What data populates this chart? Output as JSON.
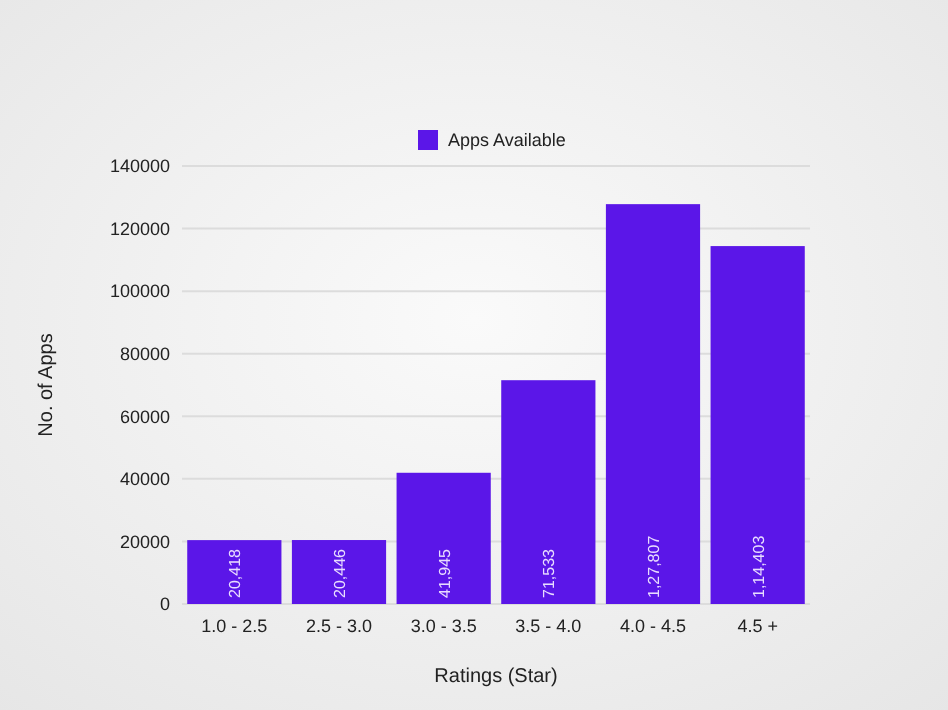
{
  "chart_data": {
    "type": "bar",
    "xlabel": "Ratings (Star)",
    "ylabel": "No. of Apps",
    "categories": [
      "1.0 - 2.5",
      "2.5 - 3.0",
      "3.0 - 3.5",
      "3.5 - 4.0",
      "4.0 - 4.5",
      "4.5 +"
    ],
    "series": [
      {
        "name": "Apps Available",
        "color": "#5b16e8",
        "values": [
          20418,
          20446,
          41945,
          71533,
          127807,
          114403
        ],
        "value_labels": [
          "20,418",
          "20,446",
          "41,945",
          "71,533",
          "1,27,807",
          "1,14,403"
        ]
      }
    ],
    "ylim": [
      0,
      140000
    ],
    "yticks": [
      0,
      20000,
      40000,
      60000,
      80000,
      100000,
      120000,
      140000
    ],
    "grid": "y",
    "legend": "top"
  }
}
